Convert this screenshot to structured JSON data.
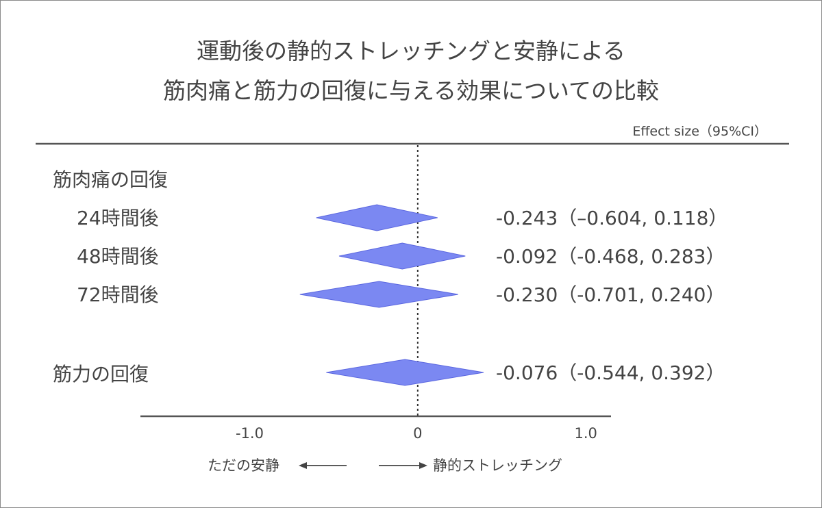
{
  "chart_data": {
    "type": "forest",
    "title": [
      "運動後の静的ストレッチングと安静による",
      "筋肉痛と筋力の回復に与える効果についての比較"
    ],
    "effect_header": "Effect size（95%CI）",
    "xlim": [
      -1.65,
      1.15
    ],
    "reference_line": 0,
    "x_ticks": [
      {
        "value": -1.0,
        "label": "-1.0"
      },
      {
        "value": 0,
        "label": "0"
      },
      {
        "value": 1.0,
        "label": "1.0"
      }
    ],
    "left_direction": "ただの安静",
    "right_direction": "静的ストレッチング",
    "marker_color": "#7b88f2",
    "marker_edge_color": "#5b67e0",
    "groups": [
      {
        "label": "筋肉痛の回復",
        "rows": [
          {
            "label": "24時間後",
            "estimate": -0.243,
            "lower": -0.604,
            "upper": 0.118,
            "text": "-0.243（–0.604, 0.118）"
          },
          {
            "label": "48時間後",
            "estimate": -0.092,
            "lower": -0.468,
            "upper": 0.283,
            "text": "-0.092（-0.468, 0.283）"
          },
          {
            "label": "72時間後",
            "estimate": -0.23,
            "lower": -0.701,
            "upper": 0.24,
            "text": "-0.230（-0.701, 0.240）"
          }
        ]
      },
      {
        "label": "筋力の回復",
        "rows": [
          {
            "label": "",
            "estimate": -0.076,
            "lower": -0.544,
            "upper": 0.392,
            "text": "-0.076（-0.544, 0.392）"
          }
        ]
      }
    ]
  }
}
